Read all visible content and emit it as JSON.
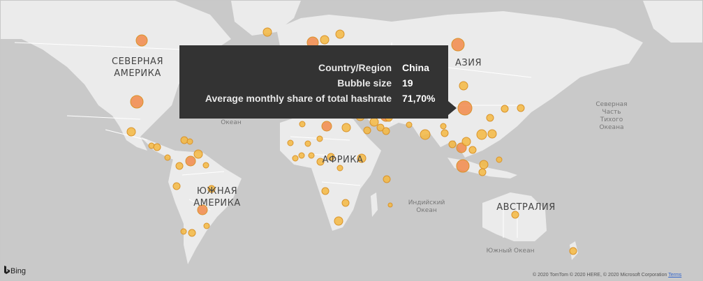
{
  "map": {
    "continents": [
      {
        "key": "north_america",
        "lines": [
          "СЕВЕРНАЯ",
          "АМЕРИКА"
        ]
      },
      {
        "key": "asia",
        "lines": [
          "АЗИЯ"
        ]
      },
      {
        "key": "africa",
        "lines": [
          "АФРИКА"
        ]
      },
      {
        "key": "south_america",
        "lines": [
          "ЮЖНАЯ",
          "АМЕРИКА"
        ]
      },
      {
        "key": "australia",
        "lines": [
          "АВСТРАЛИЯ"
        ]
      }
    ],
    "oceans": [
      {
        "key": "north_pacific",
        "lines": [
          "Северная",
          "Часть",
          "Тихого",
          "Океана"
        ]
      },
      {
        "key": "atlantic_fragment",
        "lines": [
          "Океан"
        ]
      },
      {
        "key": "indian",
        "lines": [
          "Индийский",
          "Океан"
        ]
      },
      {
        "key": "southern",
        "lines": [
          "Южный Океан"
        ]
      }
    ],
    "colors": {
      "land": "#ebebeb",
      "water": "#c9c9c9",
      "border": "#ffffff",
      "bubble_fill": "#f5b942",
      "bubble_fill_large": "#f2894a",
      "bubble_stroke": "#d9932a",
      "tooltip_bg": "#333333"
    }
  },
  "tooltip": {
    "rows": [
      {
        "key": "Country/Region",
        "value": "China"
      },
      {
        "key": "Bubble size",
        "value": "19"
      },
      {
        "key": "Average monthly share of total hashrate",
        "value": "71,70%"
      }
    ]
  },
  "attribution": {
    "brand": "Bing",
    "copyright": "© 2020 TomTom © 2020 HERE, © 2020 Microsoft Corporation",
    "terms": "Terms"
  }
}
